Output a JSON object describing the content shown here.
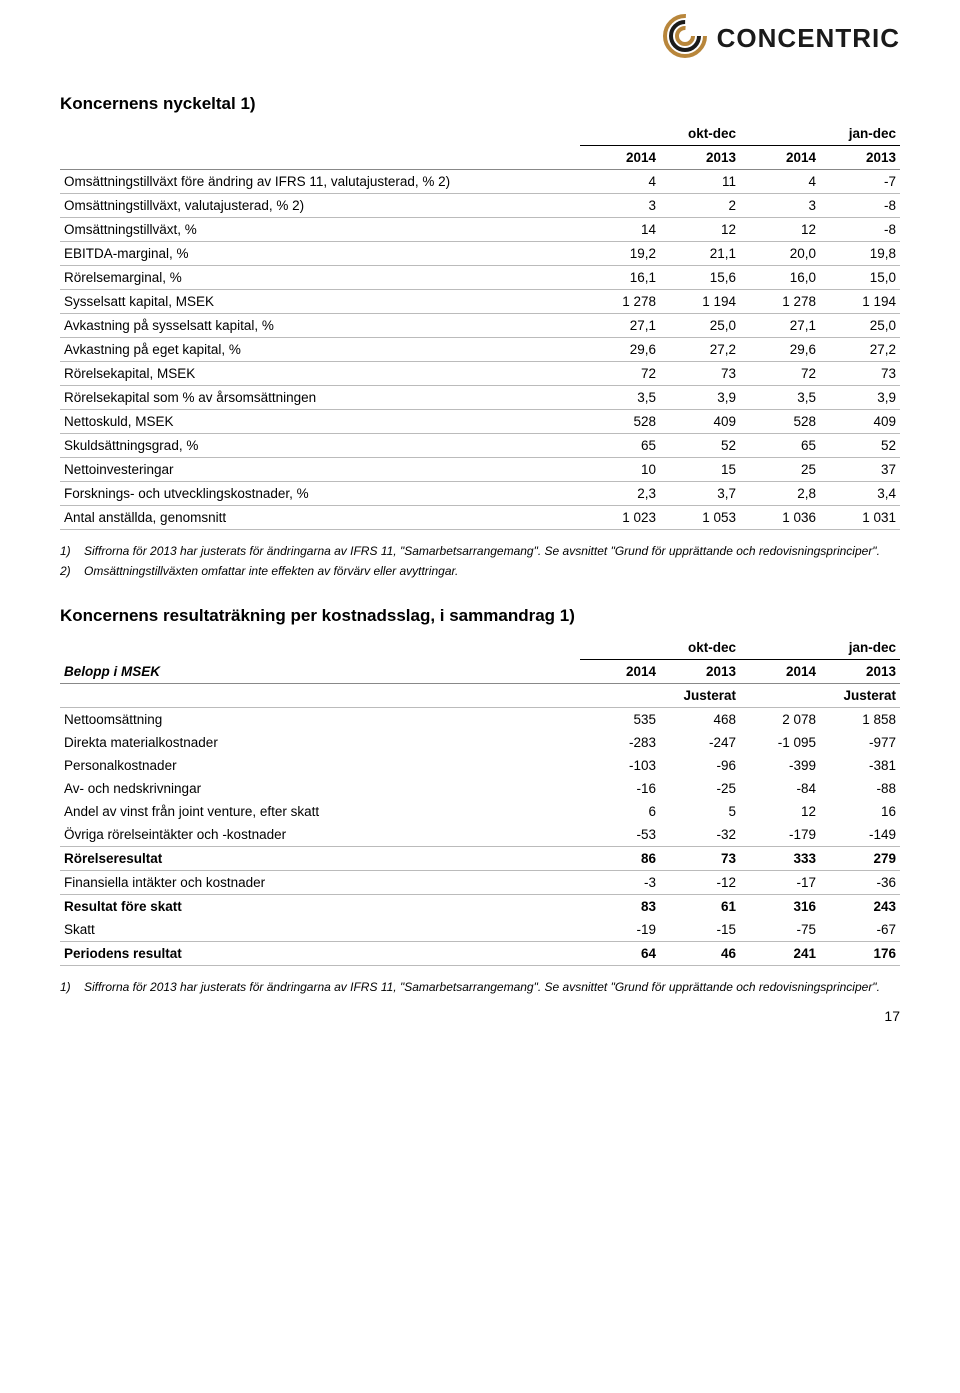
{
  "logo": {
    "name": "CONCENTRIC"
  },
  "table1": {
    "title": "Koncernens nyckeltal 1)",
    "groupHeaders": [
      "okt-dec",
      "jan-dec"
    ],
    "years": [
      "2014",
      "2013",
      "2014",
      "2013"
    ],
    "rows": [
      {
        "label": "Omsättningstillväxt före ändring av IFRS 11, valutajusterad, % 2)",
        "v": [
          "4",
          "11",
          "4",
          "-7"
        ]
      },
      {
        "label": "Omsättningstillväxt, valutajusterad, % 2)",
        "v": [
          "3",
          "2",
          "3",
          "-8"
        ]
      },
      {
        "label": "Omsättningstillväxt, %",
        "v": [
          "14",
          "12",
          "12",
          "-8"
        ]
      },
      {
        "label": "EBITDA-marginal, %",
        "v": [
          "19,2",
          "21,1",
          "20,0",
          "19,8"
        ]
      },
      {
        "label": "Rörelsemarginal, %",
        "v": [
          "16,1",
          "15,6",
          "16,0",
          "15,0"
        ]
      },
      {
        "label": "Sysselsatt kapital, MSEK",
        "v": [
          "1 278",
          "1 194",
          "1 278",
          "1 194"
        ]
      },
      {
        "label": "Avkastning på sysselsatt kapital, %",
        "v": [
          "27,1",
          "25,0",
          "27,1",
          "25,0"
        ]
      },
      {
        "label": "Avkastning på eget kapital, %",
        "v": [
          "29,6",
          "27,2",
          "29,6",
          "27,2"
        ]
      },
      {
        "label": "Rörelsekapital, MSEK",
        "v": [
          "72",
          "73",
          "72",
          "73"
        ]
      },
      {
        "label": "Rörelsekapital som % av årsomsättningen",
        "v": [
          "3,5",
          "3,9",
          "3,5",
          "3,9"
        ]
      },
      {
        "label": "Nettoskuld, MSEK",
        "v": [
          "528",
          "409",
          "528",
          "409"
        ]
      },
      {
        "label": "Skuldsättningsgrad, %",
        "v": [
          "65",
          "52",
          "65",
          "52"
        ]
      },
      {
        "label": "Nettoinvesteringar",
        "v": [
          "10",
          "15",
          "25",
          "37"
        ]
      },
      {
        "label": "Forsknings- och utvecklingskostnader, %",
        "v": [
          "2,3",
          "3,7",
          "2,8",
          "3,4"
        ]
      },
      {
        "label": "Antal anställda, genomsnitt",
        "v": [
          "1 023",
          "1 053",
          "1 036",
          "1 031"
        ]
      }
    ],
    "footnotes": [
      {
        "n": "1)",
        "t": "Siffrorna för 2013 har justerats för ändringarna av IFRS 11, \"Samarbetsarrangemang\". Se avsnittet \"Grund för upprättande och redovisningsprinciper\"."
      },
      {
        "n": "2)",
        "t": "Omsättningstillväxten omfattar inte effekten av förvärv eller avyttringar."
      }
    ]
  },
  "table2": {
    "title": "Koncernens resultaträkning per kostnadsslag, i sammandrag 1)",
    "beloppLabel": "Belopp i MSEK",
    "groupHeaders": [
      "okt-dec",
      "jan-dec"
    ],
    "years": [
      "2014",
      "2013",
      "2014",
      "2013"
    ],
    "justerat": "Justerat",
    "rows": [
      {
        "label": "Nettoomsättning",
        "v": [
          "535",
          "468",
          "2 078",
          "1 858"
        ],
        "bold": false,
        "line": false
      },
      {
        "label": "Direkta materialkostnader",
        "v": [
          "-283",
          "-247",
          "-1 095",
          "-977"
        ],
        "bold": false,
        "line": false
      },
      {
        "label": "Personalkostnader",
        "v": [
          "-103",
          "-96",
          "-399",
          "-381"
        ],
        "bold": false,
        "line": false
      },
      {
        "label": "Av- och nedskrivningar",
        "v": [
          "-16",
          "-25",
          "-84",
          "-88"
        ],
        "bold": false,
        "line": false
      },
      {
        "label": "Andel av vinst från joint venture, efter skatt",
        "v": [
          "6",
          "5",
          "12",
          "16"
        ],
        "bold": false,
        "line": false
      },
      {
        "label": "Övriga rörelseintäkter och -kostnader",
        "v": [
          "-53",
          "-32",
          "-179",
          "-149"
        ],
        "bold": false,
        "line": true
      },
      {
        "label": "Rörelseresultat",
        "v": [
          "86",
          "73",
          "333",
          "279"
        ],
        "bold": true,
        "line": true
      },
      {
        "label": "Finansiella intäkter och kostnader",
        "v": [
          "-3",
          "-12",
          "-17",
          "-36"
        ],
        "bold": false,
        "line": true
      },
      {
        "label": "Resultat före skatt",
        "v": [
          "83",
          "61",
          "316",
          "243"
        ],
        "bold": true,
        "line": false
      },
      {
        "label": "Skatt",
        "v": [
          "-19",
          "-15",
          "-75",
          "-67"
        ],
        "bold": false,
        "line": true
      },
      {
        "label": "Periodens resultat",
        "v": [
          "64",
          "46",
          "241",
          "176"
        ],
        "bold": true,
        "line": true
      }
    ],
    "footnotes": [
      {
        "n": "1)",
        "t": "Siffrorna för 2013 har justerats för ändringarna av IFRS 11, \"Samarbetsarrangemang\". Se avsnittet \"Grund för upprättande och redovisningsprinciper\"."
      }
    ]
  },
  "pageNumber": "17"
}
